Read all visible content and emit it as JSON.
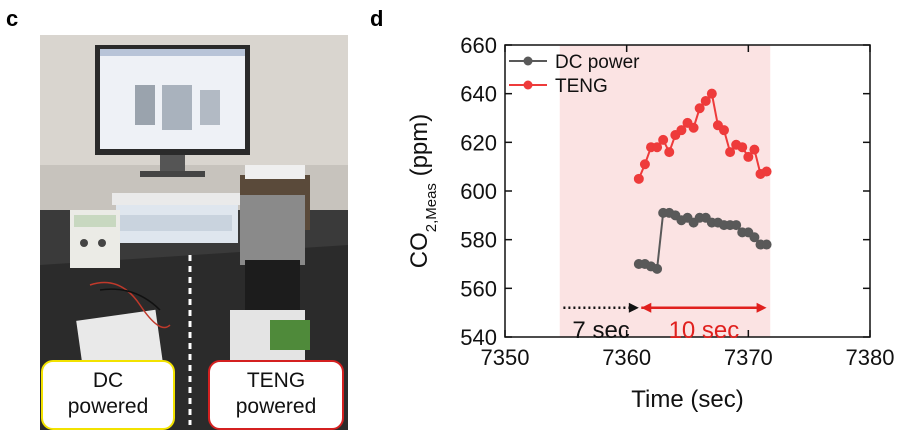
{
  "panels": {
    "c": {
      "letter": "c"
    },
    "d": {
      "letter": "d"
    }
  },
  "photo": {
    "left_label": {
      "line1": "DC",
      "line2": "powered",
      "border_color": "#f2e200"
    },
    "right_label": {
      "line1": "TENG",
      "line2": "powered",
      "border_color": "#d42020"
    }
  },
  "chart_data": {
    "type": "line",
    "title": "",
    "xlabel": "Time (sec)",
    "ylabel": {
      "main": "CO",
      "sub": "2,Meas",
      "unit": " (ppm)"
    },
    "xlim": [
      7350,
      7380
    ],
    "ylim": [
      540,
      660
    ],
    "xticks": [
      7350,
      7360,
      7370,
      7380
    ],
    "yticks": [
      540,
      560,
      580,
      600,
      620,
      640,
      660
    ],
    "legend_position": "top-left",
    "grid": false,
    "shaded_region": {
      "x": [
        7354.5,
        7371.8
      ],
      "color": "#fbe3e3"
    },
    "annotations": [
      {
        "text": "7 sec",
        "color": "#111111",
        "from": 7354.8,
        "to": 7361.0,
        "style": "dotted"
      },
      {
        "text": "10 sec",
        "color": "#e0201e",
        "from": 7361.2,
        "to": 7371.5,
        "style": "solid"
      }
    ],
    "series": [
      {
        "name": "DC power",
        "color": "#595959",
        "x": [
          7361.0,
          7361.5,
          7362.0,
          7362.5,
          7363.0,
          7363.5,
          7364.0,
          7364.5,
          7365.0,
          7365.5,
          7366.0,
          7366.5,
          7367.0,
          7367.5,
          7368.0,
          7368.5,
          7369.0,
          7369.5,
          7370.0,
          7370.5,
          7371.0,
          7371.5
        ],
        "y": [
          570,
          570,
          569,
          568,
          591,
          591,
          590,
          588,
          589,
          587,
          589,
          589,
          587,
          587,
          586,
          586,
          586,
          583,
          583,
          581,
          578,
          578
        ]
      },
      {
        "name": "TENG",
        "color": "#ee3b3b",
        "x": [
          7361.0,
          7361.5,
          7362.0,
          7362.5,
          7363.0,
          7363.5,
          7364.0,
          7364.5,
          7365.0,
          7365.5,
          7366.0,
          7366.5,
          7367.0,
          7367.5,
          7368.0,
          7368.5,
          7369.0,
          7369.5,
          7370.0,
          7370.5,
          7371.0,
          7371.5
        ],
        "y": [
          605,
          611,
          618,
          618,
          621,
          616,
          623,
          625,
          628,
          626,
          634,
          637,
          640,
          627,
          625,
          616,
          619,
          618,
          614,
          617,
          607,
          608
        ]
      }
    ]
  }
}
